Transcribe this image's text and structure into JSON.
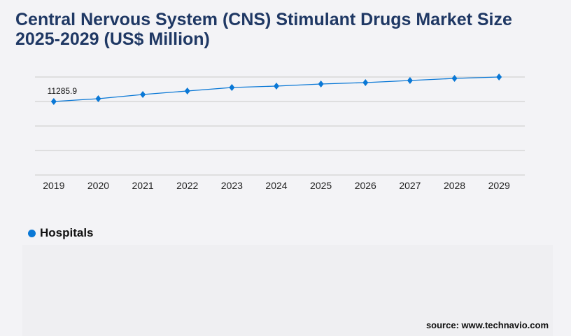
{
  "title": "Central Nervous System (CNS) Stimulant Drugs Market Size 2025-2029 (US$ Million)",
  "source": "source: www.technavio.com",
  "colors": {
    "title": "#1f3864",
    "series": "#0a78d6",
    "grid": "#c8c8c8"
  },
  "chart_data": {
    "type": "line",
    "title": "Central Nervous System (CNS) Stimulant Drugs Market Size 2025-2029 (US$ Million)",
    "categories": [
      "2019",
      "2020",
      "2021",
      "2022",
      "2023",
      "2024",
      "2025",
      "2026",
      "2027",
      "2028",
      "2029"
    ],
    "series": [
      {
        "name": "Hospitals",
        "values": [
          11285.9,
          11716,
          12361,
          12899,
          13436,
          13651,
          13974,
          14189,
          14511,
          14834,
          15048
        ]
      }
    ],
    "data_labels": [
      {
        "category": "2019",
        "text": "11285.9"
      }
    ],
    "ylim": [
      0,
      15048
    ],
    "grid": true,
    "y_tick_labels_shown": false,
    "legend": "bottom-left",
    "marker": "diamond"
  }
}
